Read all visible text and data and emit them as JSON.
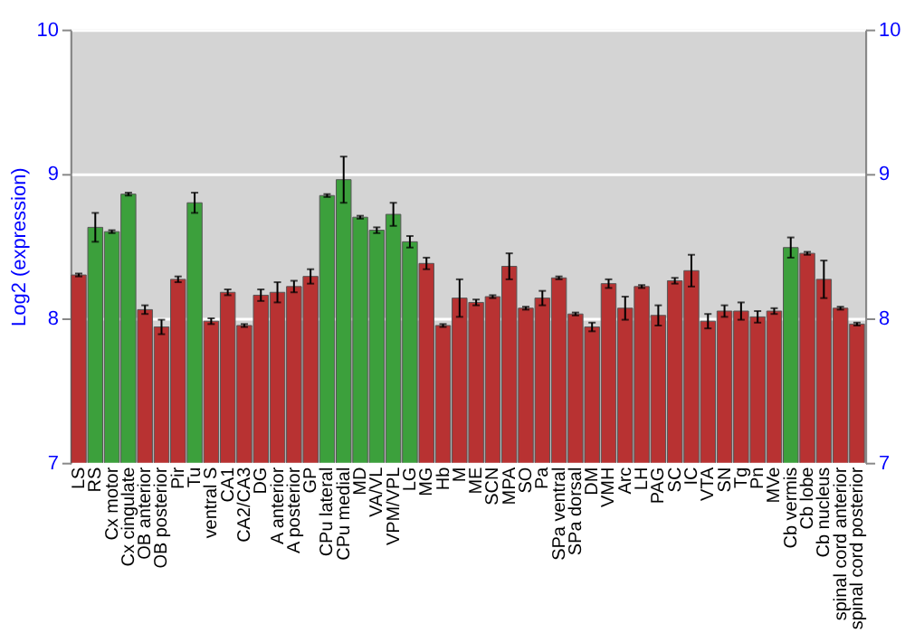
{
  "chart_data": {
    "type": "bar",
    "ylabel": "Log2 (expression)",
    "categories": [
      "LS",
      "RS",
      "Cx motor",
      "Cx cingulate",
      "OB anterior",
      "OB posterior",
      "Pir",
      "Tu",
      "ventral S",
      "CA1",
      "CA2/CA3",
      "DG",
      "A anterior",
      "A posterior",
      "GP",
      "CPu lateral",
      "CPu medial",
      "MD",
      "VA/VL",
      "VPM/VPL",
      "LG",
      "MG",
      "Hb",
      "M",
      "ME",
      "SCN",
      "MPA",
      "SO",
      "Pa",
      "SPa ventral",
      "SPa dorsal",
      "DM",
      "VMH",
      "Arc",
      "LH",
      "PAG",
      "SC",
      "IC",
      "VTA",
      "SN",
      "Tg",
      "Pn",
      "MVe",
      "Cb vermis",
      "Cb lobe",
      "Cb nucleus",
      "spinal cord anterior",
      "spinal cord posterior"
    ],
    "values": [
      8.3,
      8.63,
      8.6,
      8.86,
      8.06,
      7.94,
      8.27,
      8.8,
      7.98,
      8.18,
      7.95,
      8.16,
      8.18,
      8.22,
      8.29,
      8.85,
      8.96,
      8.7,
      8.61,
      8.72,
      8.53,
      8.38,
      7.95,
      8.14,
      8.11,
      8.15,
      8.36,
      8.07,
      8.14,
      8.28,
      8.03,
      7.94,
      8.24,
      8.07,
      8.22,
      8.02,
      8.26,
      8.33,
      7.98,
      8.05,
      8.05,
      8.01,
      8.05,
      8.49,
      8.45,
      8.27,
      8.07,
      7.96
    ],
    "errors": [
      0.01,
      0.1,
      0.01,
      0.01,
      0.03,
      0.05,
      0.02,
      0.07,
      0.02,
      0.02,
      0.01,
      0.04,
      0.07,
      0.04,
      0.05,
      0.01,
      0.16,
      0.01,
      0.02,
      0.08,
      0.04,
      0.04,
      0.01,
      0.13,
      0.02,
      0.01,
      0.09,
      0.01,
      0.05,
      0.01,
      0.01,
      0.03,
      0.03,
      0.08,
      0.01,
      0.07,
      0.02,
      0.11,
      0.05,
      0.04,
      0.06,
      0.04,
      0.02,
      0.07,
      0.01,
      0.13,
      0.01,
      0.01
    ],
    "colors": [
      "#b83232",
      "#3ca03c",
      "#3ca03c",
      "#3ca03c",
      "#b83232",
      "#b83232",
      "#b83232",
      "#3ca03c",
      "#b83232",
      "#b83232",
      "#b83232",
      "#b83232",
      "#b83232",
      "#b83232",
      "#b83232",
      "#3ca03c",
      "#3ca03c",
      "#3ca03c",
      "#3ca03c",
      "#3ca03c",
      "#3ca03c",
      "#b83232",
      "#b83232",
      "#b83232",
      "#b83232",
      "#b83232",
      "#b83232",
      "#b83232",
      "#b83232",
      "#b83232",
      "#b83232",
      "#b83232",
      "#b83232",
      "#b83232",
      "#b83232",
      "#b83232",
      "#b83232",
      "#b83232",
      "#b83232",
      "#b83232",
      "#b83232",
      "#b83232",
      "#b83232",
      "#3ca03c",
      "#b83232",
      "#b83232",
      "#b83232",
      "#b83232"
    ],
    "ylim": [
      7,
      10
    ],
    "yticks": [
      7,
      8,
      9,
      10
    ],
    "y2lim": [
      7,
      10
    ],
    "y2ticks": [
      7,
      8,
      9,
      10
    ],
    "grid": "y",
    "legend": false
  }
}
